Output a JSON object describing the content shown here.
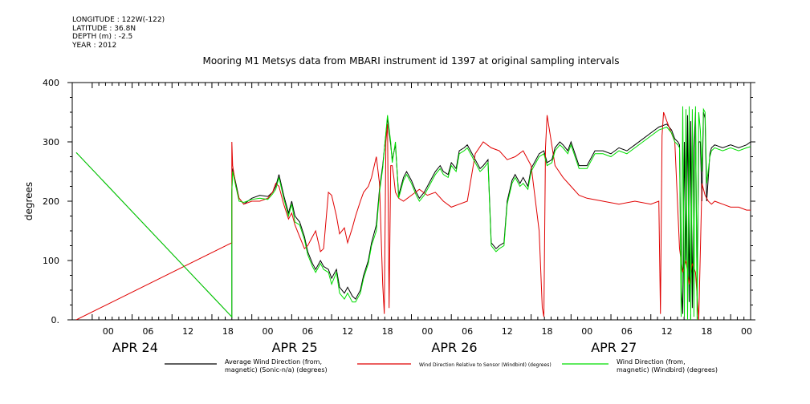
{
  "header": {
    "longitude": "LONGITUDE : 122W(-122)",
    "latitude": "LATITUDE : 36.8N",
    "depth": "DEPTH (m) : -2.5",
    "year": "YEAR : 2012"
  },
  "chart_data": {
    "type": "line",
    "title": "Mooring M1 Metsys data from MBARI instrument id 1397 at original sampling intervals",
    "ylabel": "degrees",
    "ylim": [
      0,
      400
    ],
    "yticks": [
      0,
      100,
      200,
      300,
      400
    ],
    "ytick_labels": [
      "0.",
      "100",
      "200",
      "300",
      "400"
    ],
    "xlim": [
      -0.125,
      4.125
    ],
    "xticks": [
      {
        "x": 0.1,
        "label": "00"
      },
      {
        "x": 0.35,
        "label": "06"
      },
      {
        "x": 0.6,
        "label": "12"
      },
      {
        "x": 0.85,
        "label": "18"
      },
      {
        "x": 1.1,
        "label": "00"
      },
      {
        "x": 1.35,
        "label": "06"
      },
      {
        "x": 1.6,
        "label": "12"
      },
      {
        "x": 1.85,
        "label": "18"
      },
      {
        "x": 2.1,
        "label": "00"
      },
      {
        "x": 2.35,
        "label": "06"
      },
      {
        "x": 2.6,
        "label": "12"
      },
      {
        "x": 2.85,
        "label": "18"
      },
      {
        "x": 3.1,
        "label": "00"
      },
      {
        "x": 3.35,
        "label": "06"
      },
      {
        "x": 3.6,
        "label": "12"
      },
      {
        "x": 3.85,
        "label": "18"
      },
      {
        "x": 4.1,
        "label": "00"
      }
    ],
    "day_labels": [
      {
        "x": 0.45,
        "label": "APR 24"
      },
      {
        "x": 1.45,
        "label": "APR 25"
      },
      {
        "x": 2.45,
        "label": "APR 26"
      },
      {
        "x": 3.45,
        "label": "APR 27"
      }
    ],
    "series": [
      {
        "name": "Average Wind Direction (from, magnetic) (Sonic-n/a) (degrees)",
        "color": "#000000",
        "x": [
          -0.1,
          0.875,
          0.875,
          0.88,
          0.9,
          0.92,
          0.95,
          1.0,
          1.05,
          1.1,
          1.13,
          1.15,
          1.17,
          1.2,
          1.23,
          1.25,
          1.27,
          1.3,
          1.33,
          1.35,
          1.38,
          1.4,
          1.43,
          1.45,
          1.48,
          1.5,
          1.53,
          1.55,
          1.58,
          1.6,
          1.63,
          1.65,
          1.68,
          1.7,
          1.73,
          1.75,
          1.78,
          1.8,
          1.82,
          1.85,
          1.87,
          1.88,
          1.9,
          1.92,
          1.95,
          1.97,
          2.0,
          2.03,
          2.05,
          2.08,
          2.1,
          2.13,
          2.15,
          2.18,
          2.2,
          2.23,
          2.25,
          2.28,
          2.3,
          2.33,
          2.35,
          2.38,
          2.4,
          2.43,
          2.45,
          2.48,
          2.5,
          2.53,
          2.55,
          2.58,
          2.6,
          2.63,
          2.65,
          2.68,
          2.7,
          2.73,
          2.75,
          2.78,
          2.8,
          2.83,
          2.85,
          2.88,
          2.9,
          2.93,
          2.95,
          2.98,
          3.0,
          3.05,
          3.1,
          3.15,
          3.2,
          3.25,
          3.3,
          3.35,
          3.4,
          3.45,
          3.5,
          3.55,
          3.6,
          3.63,
          3.65,
          3.67,
          3.68,
          3.69,
          3.7,
          3.71,
          3.72,
          3.73,
          3.74,
          3.75,
          3.76,
          3.77,
          3.78,
          3.79,
          3.8,
          3.81,
          3.82,
          3.83,
          3.84,
          3.85,
          3.87,
          3.88,
          3.9,
          3.95,
          4.0,
          4.05,
          4.1,
          4.125
        ],
        "y": [
          282,
          5,
          215,
          255,
          230,
          205,
          195,
          205,
          210,
          208,
          215,
          225,
          245,
          210,
          180,
          200,
          175,
          165,
          140,
          115,
          95,
          85,
          100,
          90,
          85,
          70,
          85,
          55,
          45,
          55,
          40,
          35,
          50,
          75,
          100,
          130,
          160,
          220,
          260,
          340,
          295,
          270,
          295,
          210,
          240,
          250,
          235,
          215,
          205,
          215,
          225,
          240,
          250,
          260,
          250,
          245,
          265,
          255,
          285,
          290,
          295,
          280,
          270,
          255,
          260,
          270,
          130,
          120,
          125,
          130,
          200,
          235,
          245,
          230,
          240,
          225,
          255,
          270,
          280,
          285,
          265,
          270,
          290,
          300,
          295,
          285,
          300,
          260,
          260,
          285,
          285,
          280,
          290,
          285,
          295,
          305,
          315,
          325,
          330,
          320,
          305,
          300,
          295,
          60,
          10,
          300,
          100,
          345,
          30,
          335,
          20,
          290,
          350,
          40,
          300,
          300,
          200,
          350,
          340,
          200,
          280,
          290,
          295,
          290,
          295,
          290,
          295,
          300
        ],
        "y_note": ""
      },
      {
        "name": "Wind Direction Relative to Sensor (Windbird) (degrees)",
        "color": "#e00000",
        "x": [
          -0.1,
          0.875,
          0.875,
          0.88,
          0.9,
          0.92,
          0.95,
          1.0,
          1.05,
          1.1,
          1.13,
          1.15,
          1.17,
          1.2,
          1.23,
          1.25,
          1.27,
          1.3,
          1.33,
          1.35,
          1.38,
          1.4,
          1.43,
          1.45,
          1.48,
          1.5,
          1.53,
          1.55,
          1.58,
          1.6,
          1.63,
          1.65,
          1.68,
          1.7,
          1.73,
          1.75,
          1.78,
          1.8,
          1.82,
          1.83,
          1.84,
          1.85,
          1.86,
          1.87,
          1.88,
          1.89,
          1.9,
          1.92,
          1.95,
          2.0,
          2.05,
          2.1,
          2.15,
          2.2,
          2.25,
          2.3,
          2.35,
          2.4,
          2.45,
          2.5,
          2.55,
          2.6,
          2.65,
          2.7,
          2.75,
          2.8,
          2.82,
          2.83,
          2.84,
          2.85,
          2.9,
          2.95,
          3.0,
          3.05,
          3.1,
          3.2,
          3.3,
          3.4,
          3.5,
          3.55,
          3.56,
          3.57,
          3.58,
          3.6,
          3.65,
          3.68,
          3.7,
          3.72,
          3.74,
          3.76,
          3.78,
          3.8,
          3.82,
          3.84,
          3.85,
          3.86,
          3.88,
          3.9,
          3.95,
          4.0,
          4.05,
          4.1,
          4.125
        ],
        "y": [
          0,
          130,
          300,
          260,
          225,
          205,
          195,
          200,
          200,
          205,
          215,
          230,
          225,
          195,
          170,
          180,
          160,
          140,
          120,
          125,
          140,
          150,
          115,
          120,
          215,
          210,
          175,
          145,
          155,
          130,
          155,
          175,
          200,
          215,
          225,
          240,
          275,
          230,
          60,
          10,
          300,
          330,
          20,
          260,
          260,
          240,
          215,
          205,
          200,
          210,
          220,
          210,
          215,
          200,
          190,
          195,
          200,
          280,
          300,
          290,
          285,
          270,
          275,
          285,
          260,
          150,
          20,
          5,
          290,
          345,
          260,
          240,
          225,
          210,
          205,
          200,
          195,
          200,
          195,
          200,
          10,
          310,
          350,
          335,
          300,
          120,
          80,
          100,
          60,
          95,
          80,
          0,
          230,
          210,
          205,
          200,
          195,
          200,
          195,
          190,
          190,
          185,
          185
        ]
      },
      {
        "name": "Wind Direction (from, magnetic) (Windbird) (degrees)",
        "color": "#00dd00",
        "x": [
          -0.1,
          0.875,
          0.875,
          0.88,
          0.9,
          0.92,
          0.95,
          1.0,
          1.05,
          1.1,
          1.13,
          1.15,
          1.17,
          1.2,
          1.23,
          1.25,
          1.27,
          1.3,
          1.33,
          1.35,
          1.38,
          1.4,
          1.43,
          1.45,
          1.48,
          1.5,
          1.53,
          1.55,
          1.58,
          1.6,
          1.63,
          1.65,
          1.68,
          1.7,
          1.73,
          1.75,
          1.78,
          1.8,
          1.82,
          1.85,
          1.87,
          1.88,
          1.9,
          1.92,
          1.95,
          1.97,
          2.0,
          2.03,
          2.05,
          2.08,
          2.1,
          2.13,
          2.15,
          2.18,
          2.2,
          2.23,
          2.25,
          2.28,
          2.3,
          2.33,
          2.35,
          2.38,
          2.4,
          2.43,
          2.45,
          2.48,
          2.5,
          2.53,
          2.55,
          2.58,
          2.6,
          2.63,
          2.65,
          2.68,
          2.7,
          2.73,
          2.75,
          2.78,
          2.8,
          2.83,
          2.85,
          2.88,
          2.9,
          2.93,
          2.95,
          2.98,
          3.0,
          3.05,
          3.1,
          3.15,
          3.2,
          3.25,
          3.3,
          3.35,
          3.4,
          3.45,
          3.5,
          3.55,
          3.6,
          3.63,
          3.65,
          3.67,
          3.68,
          3.69,
          3.7,
          3.71,
          3.72,
          3.73,
          3.74,
          3.75,
          3.76,
          3.77,
          3.78,
          3.79,
          3.8,
          3.81,
          3.82,
          3.83,
          3.84,
          3.85,
          3.87,
          3.88,
          3.9,
          3.95,
          4.0,
          4.05,
          4.1,
          4.125
        ],
        "y": [
          282,
          5,
          218,
          250,
          225,
          200,
          198,
          203,
          205,
          203,
          212,
          220,
          240,
          205,
          175,
          195,
          165,
          160,
          135,
          110,
          90,
          80,
          95,
          85,
          80,
          60,
          80,
          45,
          35,
          45,
          30,
          30,
          45,
          70,
          95,
          125,
          150,
          215,
          255,
          345,
          300,
          265,
          300,
          205,
          235,
          245,
          230,
          210,
          200,
          210,
          220,
          235,
          245,
          255,
          245,
          240,
          260,
          250,
          280,
          285,
          290,
          275,
          265,
          250,
          255,
          265,
          125,
          115,
          120,
          125,
          195,
          230,
          240,
          225,
          230,
          220,
          250,
          265,
          275,
          280,
          260,
          265,
          285,
          295,
          290,
          280,
          295,
          255,
          255,
          280,
          280,
          275,
          285,
          280,
          290,
          300,
          310,
          320,
          325,
          315,
          300,
          295,
          290,
          5,
          360,
          5,
          355,
          0,
          360,
          0,
          355,
          5,
          360,
          0,
          350,
          320,
          250,
          355,
          350,
          230,
          275,
          285,
          290,
          285,
          290,
          285,
          290,
          292
        ]
      }
    ],
    "legend": {
      "placement": "bottom",
      "entries": [
        {
          "label_line1": "Average Wind Direction (from,",
          "label_line2": "magnetic) (Sonic-n/a) (degrees)",
          "color": "#000000"
        },
        {
          "label_line1": "Wind Direction Relative to Sensor (Windbird) (degrees)",
          "label_line2": "",
          "color": "#e00000"
        },
        {
          "label_line1": "Wind Direction (from,",
          "label_line2": "magnetic) (Windbird) (degrees)",
          "color": "#00dd00"
        }
      ]
    },
    "grid": false
  }
}
